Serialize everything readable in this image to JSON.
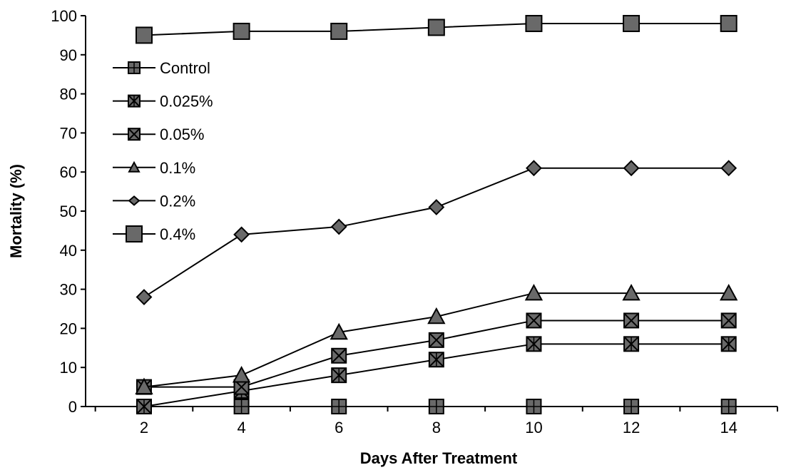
{
  "chart_data": {
    "type": "line",
    "title": "",
    "xlabel": "Days After Treatment",
    "ylabel": "Mortality (%)",
    "x": [
      2,
      4,
      6,
      8,
      10,
      12,
      14
    ],
    "xlim": [
      0.8,
      15.0
    ],
    "ylim": [
      0,
      100
    ],
    "y_ticks": [
      0,
      10,
      20,
      30,
      40,
      50,
      60,
      70,
      80,
      90,
      100
    ],
    "x_ticks": [
      2,
      4,
      6,
      8,
      10,
      12,
      14
    ],
    "grid": false,
    "legend_position": "top-left",
    "line_color": "#000000",
    "marker_fill": "#696969",
    "series": [
      {
        "name": "Control",
        "marker": "plus-square",
        "values": [
          0,
          0,
          0,
          0,
          0,
          0,
          0
        ]
      },
      {
        "name": "0.025%",
        "marker": "asterisk-square",
        "values": [
          0,
          4,
          8,
          12,
          16,
          16,
          16
        ]
      },
      {
        "name": "0.05%",
        "marker": "x-square",
        "values": [
          5,
          5,
          13,
          17,
          22,
          22,
          22
        ]
      },
      {
        "name": "0.1%",
        "marker": "triangle",
        "values": [
          5,
          8,
          19,
          23,
          29,
          29,
          29
        ]
      },
      {
        "name": "0.2%",
        "marker": "diamond",
        "values": [
          28,
          44,
          46,
          51,
          61,
          61,
          61
        ]
      },
      {
        "name": "0.4%",
        "marker": "square",
        "values": [
          95,
          96,
          96,
          97,
          98,
          98,
          98
        ]
      }
    ]
  }
}
